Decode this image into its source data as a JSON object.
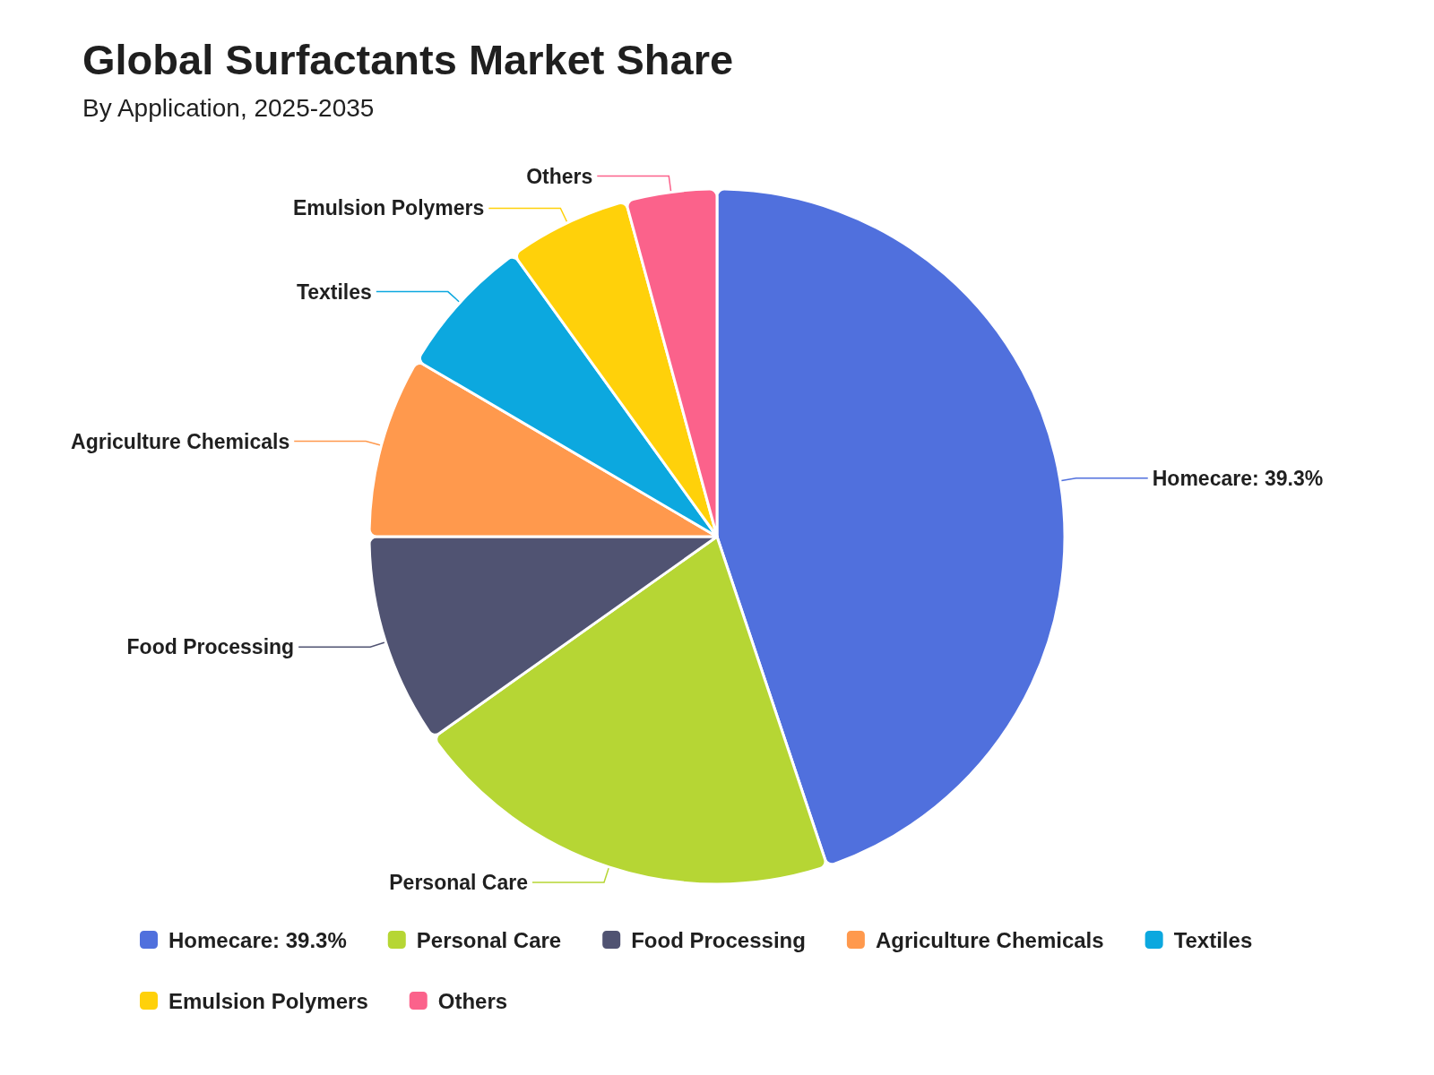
{
  "chart_data": {
    "type": "pie",
    "title": "Global Surfactants Market Share",
    "subtitle": "By Application, 2025-2035",
    "categories": [
      "Homecare: 39.3%",
      "Personal Care",
      "Food Processing",
      "Agriculture Chemicals",
      "Textiles",
      "Emulsion Polymers",
      "Others"
    ],
    "values": [
      39.3,
      17.8,
      8.6,
      7.4,
      5.8,
      5.0,
      3.7
    ],
    "colors": [
      "#5070dd",
      "#b6d634",
      "#505372",
      "#ff994d",
      "#0ca8df",
      "#ffd10a",
      "#fb628b"
    ],
    "legend": "bottom"
  }
}
